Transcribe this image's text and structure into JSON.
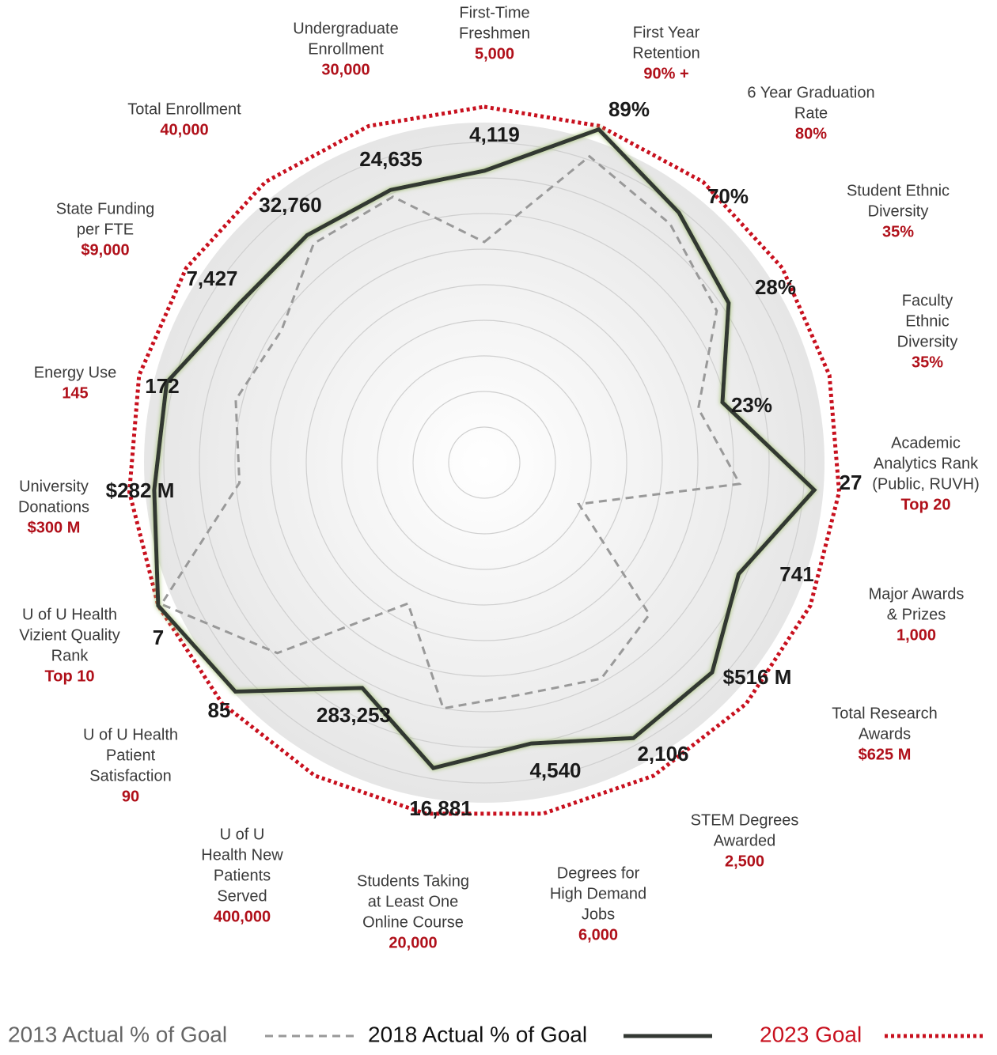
{
  "chart_data": {
    "type": "radar",
    "categories": [
      [
        "First-Time",
        "Freshmen"
      ],
      [
        "First Year",
        "Retention"
      ],
      [
        "6 Year Graduation",
        "Rate"
      ],
      [
        "Student Ethnic",
        "Diversity"
      ],
      [
        "Faculty",
        "Ethnic",
        "Diversity"
      ],
      [
        "Academic",
        "Analytics Rank",
        "(Public, RUVH)"
      ],
      [
        "Major Awards",
        "& Prizes"
      ],
      [
        "Total Research",
        "Awards"
      ],
      [
        "STEM Degrees",
        "Awarded"
      ],
      [
        "Degrees for",
        "High Demand",
        "Jobs"
      ],
      [
        "Students Taking",
        "at Least One",
        "Online Course"
      ],
      [
        "U of U",
        "Health New",
        "Patients",
        "Served"
      ],
      [
        "U of U Health",
        "Patient",
        "Satisfaction"
      ],
      [
        "U of U Health",
        "Vizient Quality",
        "Rank"
      ],
      [
        "University",
        "Donations"
      ],
      [
        "Energy Use"
      ],
      [
        "State Funding",
        "per FTE"
      ],
      [
        "Total Enrollment"
      ],
      [
        "Undergraduate",
        "Enrollment"
      ]
    ],
    "goals": [
      "5,000",
      "90% +",
      "80%",
      "35%",
      "35%",
      "Top 20",
      "1,000",
      "$625 M",
      "2,500",
      "6,000",
      "20,000",
      "400,000",
      "90",
      "Top 10",
      "$300 M",
      "145",
      "$9,000",
      "40,000",
      "30,000"
    ],
    "actuals": [
      "4,119",
      "89%",
      "70%",
      "28%",
      "23%",
      "27",
      "741",
      "$516 M",
      "2,106",
      "4,540",
      "16,881",
      "283,253",
      "85",
      "7",
      "$282 M",
      "172",
      "7,427",
      "32,760",
      "24,635"
    ],
    "rlim": [
      0,
      100
    ],
    "rticks": [
      10,
      20,
      30,
      40,
      50,
      60,
      70,
      80,
      90
    ],
    "series": [
      {
        "name": "2013 Actual % of Goal",
        "color": "#999999",
        "style": "dashed",
        "values": [
          62,
          91,
          85,
          78,
          62,
          72,
          29,
          63,
          69,
          66,
          70,
          45,
          79,
          99,
          69,
          72,
          68,
          78,
          79
        ]
      },
      {
        "name": "2018 Actual % of Goal",
        "color": "#333833",
        "style": "solid",
        "values": [
          82,
          99,
          89,
          82,
          69,
          93,
          78,
          87,
          88,
          80,
          87,
          72,
          95,
          100,
          93,
          92,
          82,
          81,
          81
        ]
      },
      {
        "name": "2023 Goal",
        "color": "#c8101e",
        "style": "dotted",
        "values": [
          100,
          100,
          100,
          100,
          100,
          100,
          100,
          100,
          100,
          100,
          100,
          100,
          100,
          100,
          100,
          100,
          100,
          100,
          100
        ]
      }
    ]
  }
}
